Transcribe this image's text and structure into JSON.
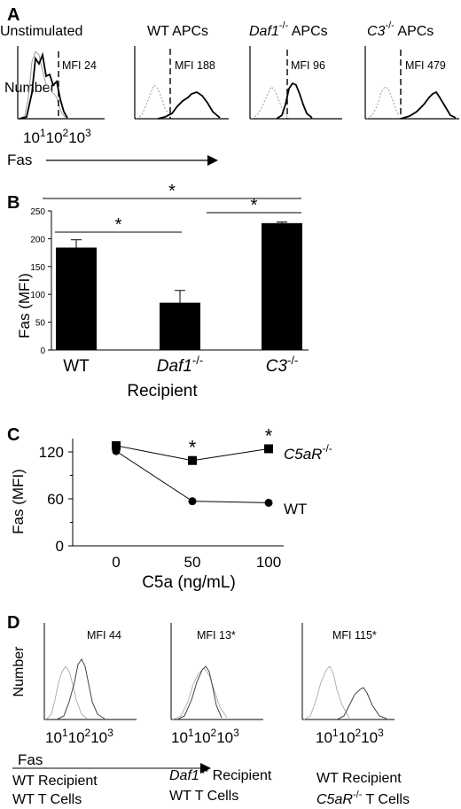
{
  "panels": {
    "A": {
      "label": "A",
      "ylabel": "Number",
      "xlabel": "Fas",
      "tick_labels": [
        "10",
        "1",
        "10",
        "2",
        "10",
        "3"
      ],
      "histograms": [
        {
          "title": "Unstimulated",
          "mfi": "MFI 24"
        },
        {
          "title": "WT APCs",
          "mfi": "MFI 188"
        },
        {
          "title_gene": "Daf1",
          "title_sup": "-/-",
          "title_rest": " APCs",
          "mfi": "MFI 96"
        },
        {
          "title_gene": "C3",
          "title_sup": "-/-",
          "title_rest": " APCs",
          "mfi": "MFI 479"
        }
      ]
    },
    "B": {
      "label": "B",
      "ylabel": "Fas (MFI)",
      "xlabel": "Recipient",
      "star": "*",
      "cat_wt": "WT",
      "cat_daf_gene": "Daf1",
      "cat_daf_sup": "-/-",
      "cat_c3_gene": "C3",
      "cat_c3_sup": "-/-"
    },
    "C": {
      "label": "C",
      "ylabel": "Fas (MFI)",
      "xlabel": "C5a (ng/mL)",
      "star": "*",
      "c5ar_gene": "C5aR",
      "c5ar_sup": "-/-",
      "wt_label": "WT"
    },
    "D": {
      "label": "D",
      "ylabel": "Number",
      "xlabel": "Fas",
      "tick_labels": [
        "10",
        "1",
        "10",
        "2",
        "10",
        "3"
      ],
      "histograms": [
        {
          "mfi": "MFI 44"
        },
        {
          "mfi": "MFI 13*"
        },
        {
          "mfi": "MFI 115*"
        }
      ],
      "caption1_line1": "WT Recipient",
      "caption1_line2": "WT T Cells",
      "caption2_gene": "Daf1",
      "caption2_sup": "-/-",
      "caption2_rest": " Recipient",
      "caption2_line2": "WT T Cells",
      "caption3_line1": "WT Recipient",
      "caption3_gene": "C5aR",
      "caption3_sup": "-/-",
      "caption3_rest": " T Cells"
    }
  },
  "chart_data": [
    {
      "type": "bar",
      "panel": "B",
      "categories": [
        "WT",
        "Daf1-/-",
        "C3-/-"
      ],
      "values": [
        184,
        85,
        228
      ],
      "errors": [
        14,
        22,
        2
      ],
      "ylabel": "Fas (MFI)",
      "xlabel": "Recipient",
      "ylim": [
        0,
        250
      ],
      "yticks": [
        0,
        50,
        100,
        150,
        200,
        250
      ],
      "significance": [
        {
          "from": "WT",
          "to": "Daf1-/-"
        },
        {
          "from": "Daf1-/-",
          "to": "C3-/-"
        },
        {
          "from": "WT",
          "to": "C3-/-"
        }
      ]
    },
    {
      "type": "line",
      "panel": "C",
      "x": [
        0,
        50,
        100
      ],
      "xticks": [
        0,
        50,
        100
      ],
      "yticks": [
        0,
        60,
        120
      ],
      "ylim": [
        0,
        140
      ],
      "xlim": [
        -20,
        110
      ],
      "series": [
        {
          "name": "C5aR-/-",
          "values": [
            128,
            109,
            124
          ],
          "marker": "square"
        },
        {
          "name": "WT",
          "values": [
            121,
            57,
            55
          ],
          "marker": "circle"
        }
      ],
      "significant_x": [
        50,
        100
      ],
      "xlabel": "C5a (ng/mL)",
      "ylabel": "Fas (MFI)"
    }
  ]
}
